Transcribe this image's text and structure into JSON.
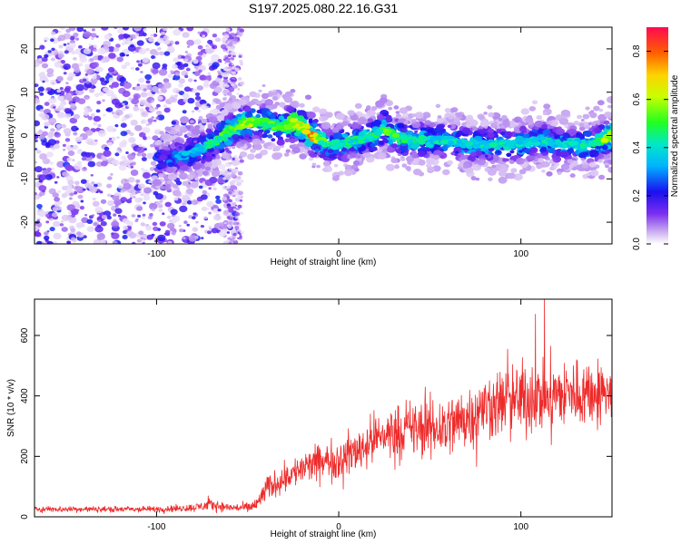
{
  "title": "S197.2025.080.22.16.G31",
  "chart_data": [
    {
      "type": "heatmap",
      "xlabel": "Height of straight line (km)",
      "ylabel": "Frequency (Hz)",
      "xlim": [
        -167,
        150
      ],
      "ylim": [
        -25,
        25
      ],
      "xticks": [
        -100,
        0,
        100
      ],
      "yticks": [
        -20,
        -10,
        0,
        10,
        20
      ],
      "colorbar": {
        "label": "Normalized spectral amplitude",
        "range": [
          0,
          0.9
        ],
        "ticks": [
          0.0,
          0.2,
          0.4,
          0.6,
          0.8
        ]
      },
      "ridge": {
        "x": [
          -100,
          -90,
          -80,
          -70,
          -60,
          -50,
          -40,
          -35,
          -30,
          -25,
          -20,
          -15,
          -10,
          -5,
          0,
          10,
          20,
          25,
          30,
          40,
          50,
          60,
          70,
          80,
          90,
          100,
          110,
          120,
          130,
          140,
          150
        ],
        "y": [
          -6,
          -5,
          -4,
          -2,
          1,
          3,
          3,
          2,
          2,
          3,
          2,
          0,
          -1,
          -2,
          -2,
          -1,
          0,
          2,
          0,
          -1,
          -1,
          -1,
          -2,
          -2,
          -2,
          -2,
          -1,
          -2,
          -2,
          -2,
          0
        ],
        "amp": [
          0.3,
          0.35,
          0.4,
          0.5,
          0.6,
          0.65,
          0.6,
          0.55,
          0.6,
          0.7,
          0.75,
          0.88,
          0.6,
          0.5,
          0.5,
          0.5,
          0.5,
          0.6,
          0.55,
          0.5,
          0.45,
          0.45,
          0.45,
          0.45,
          0.45,
          0.45,
          0.45,
          0.45,
          0.45,
          0.5,
          0.8
        ]
      },
      "noise_region": {
        "x": [
          -167,
          -55
        ],
        "amp": 0.12
      }
    },
    {
      "type": "line",
      "xlabel": "Height of straight line (km)",
      "ylabel": "SNR (10 * v/v)",
      "xlim": [
        -167,
        150
      ],
      "ylim": [
        0,
        720
      ],
      "xticks": [
        -100,
        0,
        100
      ],
      "yticks": [
        0,
        200,
        400,
        600
      ],
      "series": [
        {
          "color": "#ee2b2b",
          "envelope_x": [
            -167,
            -100,
            -80,
            -70,
            -60,
            -50,
            -45,
            -40,
            -30,
            -20,
            -10,
            0,
            10,
            20,
            30,
            40,
            50,
            60,
            70,
            80,
            90,
            100,
            110,
            120,
            130,
            140,
            150
          ],
          "envelope_mean": [
            25,
            25,
            30,
            40,
            30,
            30,
            40,
            90,
            130,
            160,
            180,
            190,
            220,
            260,
            280,
            290,
            290,
            300,
            330,
            360,
            380,
            390,
            400,
            400,
            410,
            410,
            410
          ],
          "envelope_spread": [
            15,
            15,
            20,
            30,
            20,
            25,
            40,
            60,
            70,
            80,
            90,
            100,
            110,
            120,
            130,
            140,
            150,
            160,
            160,
            160,
            170,
            180,
            180,
            180,
            170,
            160,
            150
          ]
        }
      ]
    }
  ]
}
